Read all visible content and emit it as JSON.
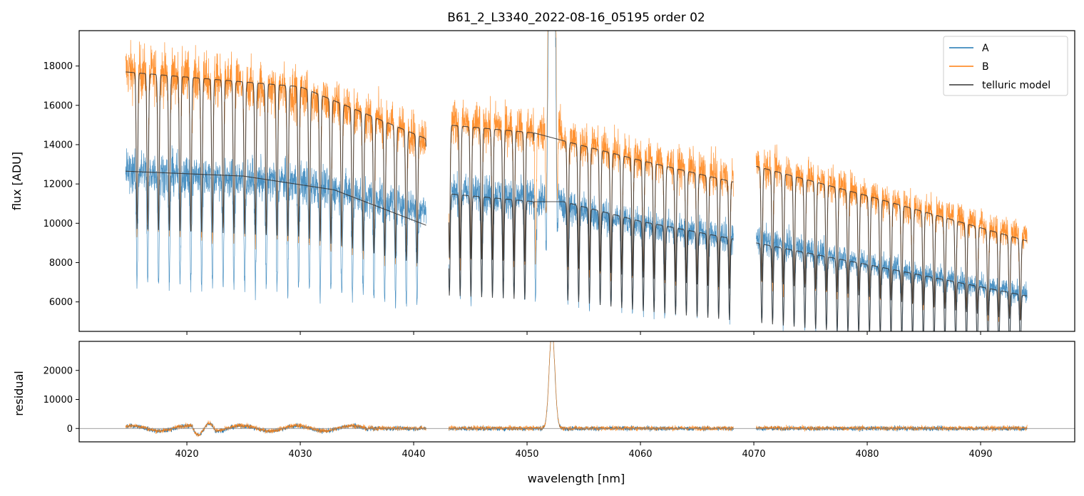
{
  "chart_data": {
    "type": "line",
    "title": "B61_2_L3340_2022-08-16_05195  order 02",
    "xlabel": "wavelength [nm]",
    "xlim": [
      4010.5,
      4098.3
    ],
    "x_ticks": [
      4020,
      4030,
      4040,
      4050,
      4060,
      4070,
      4080,
      4090
    ],
    "x_tick_labels": [
      "4020",
      "4030",
      "4040",
      "4050",
      "4060",
      "4070",
      "4080",
      "4090"
    ],
    "legend_position": "top-right",
    "legend": [
      "A",
      "B",
      "telluric model"
    ],
    "colors": {
      "A": "#1f77b4",
      "B": "#ff7f0e",
      "model": "#333333",
      "zero_line": "#808080"
    },
    "segments": [
      [
        4014.6,
        4041.1
      ],
      [
        4043.1,
        4068.2
      ],
      [
        4070.2,
        4094.1
      ]
    ],
    "emission_line": {
      "center": 4052.2,
      "width": 0.35
    },
    "top_panel": {
      "ylabel": "flux [ADU]",
      "ylim": [
        4500,
        19800
      ],
      "y_ticks": [
        6000,
        8000,
        10000,
        12000,
        14000,
        16000,
        18000
      ],
      "y_tick_labels": [
        "6000",
        "8000",
        "10000",
        "12000",
        "14000",
        "16000",
        "18000"
      ],
      "series": [
        {
          "name": "A",
          "continuum": [
            [
              4014.6,
              12700
            ],
            [
              4030,
              12100
            ],
            [
              4041.1,
              10700
            ],
            [
              4043.1,
              11600
            ],
            [
              4050,
              11300
            ],
            [
              4060,
              10000
            ],
            [
              4068.2,
              9300
            ],
            [
              4070.2,
              9200
            ],
            [
              4080,
              8000
            ],
            [
              4094.1,
              6400
            ]
          ]
        },
        {
          "name": "B",
          "continuum": [
            [
              4014.6,
              17800
            ],
            [
              4030,
              16700
            ],
            [
              4041.1,
              14400
            ],
            [
              4043.1,
              15200
            ],
            [
              4050,
              14800
            ],
            [
              4060,
              13300
            ],
            [
              4068.2,
              12300
            ],
            [
              4070.2,
              13000
            ],
            [
              4080,
              11500
            ],
            [
              4094.1,
              9300
            ]
          ]
        },
        {
          "name": "telluric model",
          "curves": [
            [
              [
                4014.6,
                12650
              ],
              [
                4025,
                12400
              ],
              [
                4033,
                11700
              ],
              [
                4041.1,
                9900
              ]
            ],
            [
              [
                4014.6,
                17700
              ],
              [
                4030,
                16950
              ],
              [
                4041.1,
                14300
              ]
            ],
            [
              [
                4043.1,
                11500
              ],
              [
                4050.6,
                11100
              ],
              [
                4053.2,
                11100
              ],
              [
                4060,
                10100
              ],
              [
                4068.2,
                9200
              ]
            ],
            [
              [
                4043.1,
                15000
              ],
              [
                4050.6,
                14600
              ],
              [
                4053.2,
                14200
              ],
              [
                4060,
                13200
              ],
              [
                4068.2,
                12100
              ]
            ],
            [
              [
                4070.2,
                9000
              ],
              [
                4080,
                7900
              ],
              [
                4094.1,
                6300
              ]
            ],
            [
              [
                4070.2,
                12900
              ],
              [
                4080,
                11400
              ],
              [
                4094.1,
                9100
              ]
            ]
          ]
        }
      ]
    },
    "bottom_panel": {
      "ylabel": "residual",
      "ylim": [
        -4600,
        30000
      ],
      "y_ticks": [
        0,
        10000,
        20000
      ],
      "y_tick_labels": [
        "0",
        "10000",
        "20000"
      ],
      "zero_line": 0
    }
  }
}
